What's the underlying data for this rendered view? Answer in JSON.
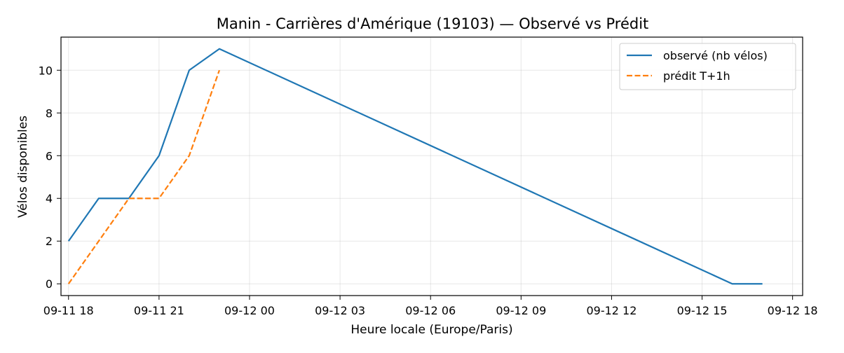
{
  "chart_data": {
    "type": "line",
    "title": "Manin - Carrières d'Amérique (19103) — Observé vs Prédit",
    "xlabel": "Heure locale (Europe/Paris)",
    "ylabel": "Vélos disponibles",
    "xlim": [
      "2024-09-11 17:45",
      "2024-09-12 18:20"
    ],
    "ylim": [
      -0.55,
      11.55
    ],
    "x_ticks": [
      {
        "t": "2024-09-11 18:00",
        "label": "09-11 18"
      },
      {
        "t": "2024-09-11 21:00",
        "label": "09-11 21"
      },
      {
        "t": "2024-09-12 00:00",
        "label": "09-12 00"
      },
      {
        "t": "2024-09-12 03:00",
        "label": "09-12 03"
      },
      {
        "t": "2024-09-12 06:00",
        "label": "09-12 06"
      },
      {
        "t": "2024-09-12 09:00",
        "label": "09-12 09"
      },
      {
        "t": "2024-09-12 12:00",
        "label": "09-12 12"
      },
      {
        "t": "2024-09-12 15:00",
        "label": "09-12 15"
      },
      {
        "t": "2024-09-12 18:00",
        "label": "09-12 18"
      }
    ],
    "y_ticks": [
      {
        "v": 0,
        "label": "0"
      },
      {
        "v": 2,
        "label": "2"
      },
      {
        "v": 4,
        "label": "4"
      },
      {
        "v": 6,
        "label": "6"
      },
      {
        "v": 8,
        "label": "8"
      },
      {
        "v": 10,
        "label": "10"
      }
    ],
    "grid": true,
    "legend_position": "upper-right",
    "series": [
      {
        "name": "observé (nb vélos)",
        "color": "#1f77b4",
        "dash": "solid",
        "points": [
          {
            "t": "2024-09-11 18:00",
            "y": 2
          },
          {
            "t": "2024-09-11 19:00",
            "y": 4
          },
          {
            "t": "2024-09-11 20:00",
            "y": 4
          },
          {
            "t": "2024-09-11 21:00",
            "y": 6
          },
          {
            "t": "2024-09-11 22:00",
            "y": 10
          },
          {
            "t": "2024-09-11 23:00",
            "y": 11
          },
          {
            "t": "2024-09-12 16:00",
            "y": 0
          },
          {
            "t": "2024-09-12 17:00",
            "y": 0
          }
        ]
      },
      {
        "name": "prédit T+1h",
        "color": "#ff7f0e",
        "dash": "dashed",
        "points": [
          {
            "t": "2024-09-11 18:00",
            "y": 0
          },
          {
            "t": "2024-09-11 20:00",
            "y": 4
          },
          {
            "t": "2024-09-11 21:00",
            "y": 4
          },
          {
            "t": "2024-09-11 22:00",
            "y": 6
          },
          {
            "t": "2024-09-11 23:00",
            "y": 10
          }
        ]
      }
    ]
  }
}
